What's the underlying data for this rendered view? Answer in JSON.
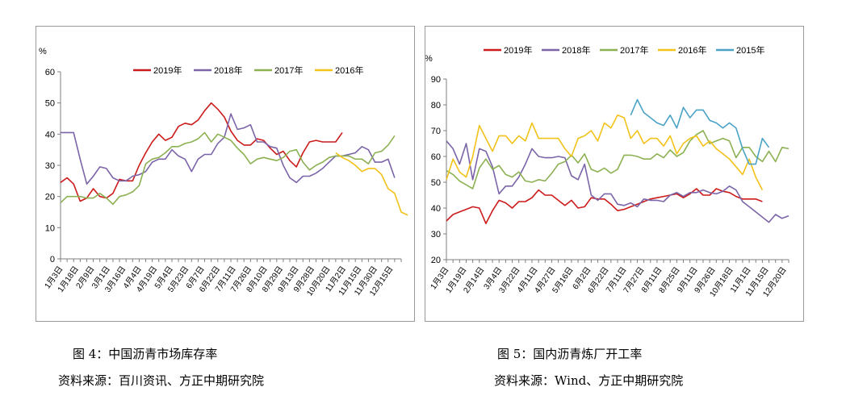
{
  "figures": [
    {
      "caption": "图 4：中国沥青市场库存率",
      "source": "资料来源：百川资讯、方正中期研究院"
    },
    {
      "caption": "图 5：国内沥青炼厂开工率",
      "source": "资料来源：Wind、方正中期研究院"
    }
  ],
  "chart_data": [
    {
      "type": "line",
      "unit_label": "%",
      "ylim": [
        0,
        60
      ],
      "yticks": [
        0,
        10,
        20,
        30,
        40,
        50,
        60
      ],
      "xlim": [
        0,
        52
      ],
      "grid": false,
      "legend_position": "top",
      "x_tick_labels": [
        "1月3日",
        "1月18日",
        "2月9日",
        "3月1日",
        "3月16日",
        "4月4日",
        "4月19日",
        "5月4日",
        "5月23日",
        "6月7日",
        "6月22日",
        "7月11日",
        "7月26日",
        "8月10日",
        "8月29日",
        "9月13日",
        "9月28日",
        "10月20日",
        "11月2日",
        "11月15日",
        "11月30日",
        "12月15日"
      ],
      "x_tick_positions": [
        0,
        2.4,
        4.8,
        7.2,
        9.6,
        12,
        14.4,
        16.8,
        19.2,
        21.6,
        24,
        26.4,
        28.8,
        31.2,
        33.6,
        36,
        38.4,
        40.8,
        43.2,
        45.6,
        48,
        50.4
      ],
      "series": [
        {
          "name": "2019年",
          "color": "#cc1b1b",
          "values": [
            24.5,
            26,
            24,
            18.5,
            19.5,
            22.5,
            20,
            19.5,
            21,
            25.5,
            25,
            25,
            30,
            34,
            37.5,
            40,
            38,
            39,
            42.5,
            43.5,
            43,
            44.5,
            47.5,
            50,
            48,
            45.5,
            41,
            38,
            36.5,
            36.5,
            38.5,
            38,
            35.5,
            33.5,
            34.5,
            31.5,
            29.5,
            34,
            37.5,
            38,
            37.5,
            37.5,
            37.5,
            40.5
          ]
        },
        {
          "name": "2018年",
          "color": "#7b64a8",
          "values": [
            40.5,
            40.5,
            40.5,
            32,
            24,
            26.5,
            29.5,
            29,
            26,
            25,
            25,
            26.5,
            27,
            28,
            31,
            32,
            32,
            35,
            33,
            32,
            28,
            32,
            33.5,
            33.5,
            37,
            39,
            46.5,
            41.5,
            42,
            43,
            37.5,
            37.5,
            36,
            35.5,
            30,
            26,
            24.5,
            26.5,
            26.5,
            27.5,
            29,
            31,
            33,
            33,
            33.5,
            34,
            36,
            35,
            31,
            31,
            32,
            26
          ]
        },
        {
          "name": "2017年",
          "color": "#8cb153",
          "values": [
            18,
            20,
            20,
            20,
            19.5,
            19.5,
            21,
            19.5,
            17.5,
            20,
            20.5,
            21.5,
            23.5,
            30.5,
            32,
            32.5,
            34,
            36,
            36,
            37,
            37.5,
            38.5,
            40.5,
            37.5,
            40,
            39,
            38,
            35.5,
            33.5,
            30.5,
            32,
            32.5,
            32,
            31.5,
            32.5,
            34.5,
            35,
            31,
            28.5,
            30,
            31,
            32.5,
            33,
            33,
            33,
            32,
            32,
            30.5,
            34,
            34.5,
            36.5,
            39.5
          ]
        },
        {
          "name": "2016年",
          "color": "#f2c218",
          "x_start": 42,
          "values": [
            34,
            32.5,
            31.5,
            30,
            28,
            29,
            29,
            27,
            22.5,
            21,
            15,
            14
          ]
        }
      ]
    },
    {
      "type": "line",
      "unit_label": "%",
      "ylim": [
        20,
        90
      ],
      "yticks": [
        20,
        30,
        40,
        50,
        60,
        70,
        80,
        90
      ],
      "xlim": [
        0,
        52
      ],
      "grid": false,
      "legend_position": "top",
      "x_tick_labels": [
        "1月3日",
        "1月19日",
        "2月14日",
        "3月4日",
        "3月22日",
        "4月11日",
        "4月27日",
        "5月16日",
        "6月2日",
        "6月22日",
        "7月11日",
        "7月27日",
        "8月11日",
        "8月25日",
        "9月11日",
        "9月26日",
        "10月18日",
        "11月1日",
        "11月15日",
        "12月20日"
      ],
      "x_tick_positions": [
        0,
        2.7,
        5.4,
        8.1,
        10.8,
        13.5,
        16.2,
        18.9,
        21.6,
        24.3,
        27,
        29.7,
        32.4,
        35.1,
        37.8,
        40.5,
        43.2,
        45.9,
        48.6,
        51.3
      ],
      "series": [
        {
          "name": "2019年",
          "color": "#cc1b1b",
          "values": [
            35,
            37.5,
            38.5,
            39.5,
            40.5,
            40,
            34,
            39,
            43,
            42,
            40,
            42.5,
            42.5,
            44,
            47,
            45,
            45,
            43,
            41,
            43,
            40,
            40.5,
            44,
            43.5,
            43.5,
            41.5,
            39,
            39.5,
            40.5,
            41.5,
            42.5,
            43.5,
            44,
            44.5,
            45,
            45.5,
            44,
            45.5,
            47.5,
            45,
            45,
            47.5,
            46.5,
            46,
            44.5,
            43.5,
            43.5,
            43.5,
            42.5
          ]
        },
        {
          "name": "2018年",
          "color": "#7b64a8",
          "values": [
            66,
            63,
            57,
            65,
            51,
            63,
            62,
            56,
            45.5,
            48.5,
            48.5,
            52,
            57,
            63,
            60,
            59.5,
            59.5,
            60,
            59.5,
            52.5,
            51,
            57,
            45,
            43,
            45.5,
            45.5,
            41.5,
            41,
            42,
            40.5,
            43.5,
            43,
            43,
            42.5,
            45,
            46,
            44.5,
            46,
            46,
            47,
            46,
            45.5,
            46.5,
            48.5,
            47,
            42.5,
            40.5,
            38.5,
            36.5,
            34.5,
            37.5,
            36,
            37
          ]
        },
        {
          "name": "2017年",
          "color": "#8cb153",
          "values": [
            54.5,
            53,
            50.5,
            49,
            47.5,
            55.5,
            59,
            55,
            56.5,
            53,
            52,
            54,
            50.5,
            50,
            51,
            50.5,
            53.5,
            57,
            58,
            60.5,
            57.5,
            61,
            55,
            54,
            55.5,
            53.5,
            55,
            60.5,
            60.5,
            60,
            59,
            59,
            61,
            59.5,
            62.5,
            60,
            61.5,
            66,
            68.5,
            70,
            65,
            66,
            67,
            66,
            59.5,
            63.5,
            63.5,
            60,
            58,
            62,
            58,
            63.5,
            63
          ]
        },
        {
          "name": "2016年",
          "color": "#f2c218",
          "values": [
            51,
            59,
            54,
            52,
            60,
            72,
            67,
            62,
            68,
            68,
            65,
            68,
            66,
            73,
            67,
            67,
            67,
            67,
            63,
            60,
            67,
            68,
            70,
            66,
            73,
            71,
            76,
            75,
            67,
            70,
            65,
            67,
            67,
            64,
            68,
            61,
            65,
            67,
            68,
            64,
            66,
            63,
            61,
            59,
            56,
            53,
            59,
            52,
            47
          ]
        },
        {
          "name": "2015年",
          "color": "#4aa3c6",
          "x_start": 28,
          "values": [
            76,
            82,
            77,
            75,
            73,
            72,
            76,
            71,
            79,
            75,
            78,
            78,
            74,
            73,
            71,
            73,
            71,
            63,
            57,
            57,
            67,
            63.5
          ]
        }
      ]
    }
  ]
}
